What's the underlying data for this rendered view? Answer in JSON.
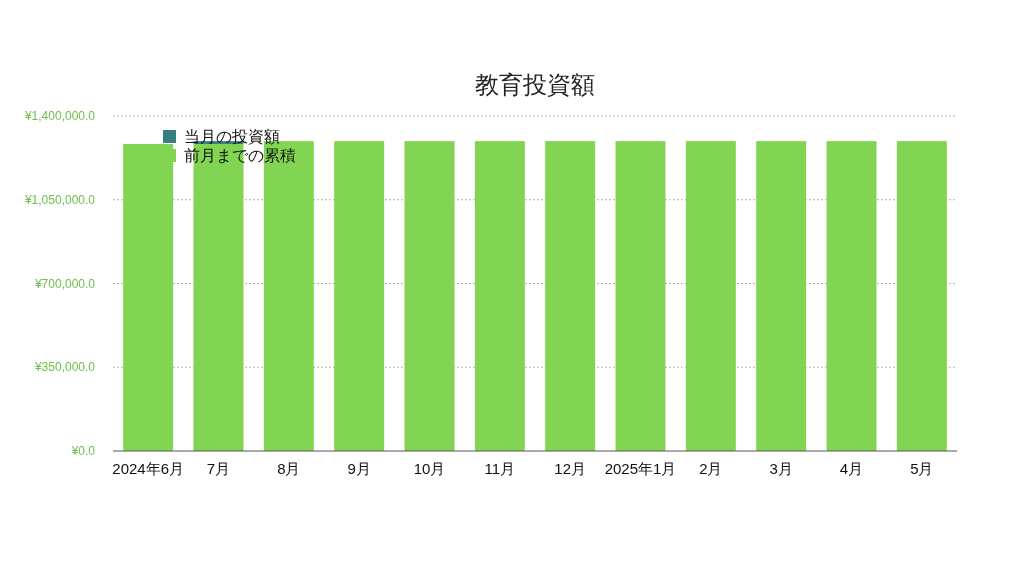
{
  "chart_data": {
    "type": "bar",
    "title": "教育投資額",
    "stacked": true,
    "categories": [
      "2024年6月",
      "7月",
      "8月",
      "9月",
      "10月",
      "11月",
      "12月",
      "2025年1月",
      "2月",
      "3月",
      "4月",
      "5月"
    ],
    "series": [
      {
        "name": "前月までの累積",
        "color": "#82d552",
        "values": [
          1283000,
          1283000,
          1295000,
          1295000,
          1295000,
          1295000,
          1295000,
          1295000,
          1295000,
          1295000,
          1295000,
          1295000
        ]
      },
      {
        "name": "当月の投資額",
        "color": "#3a7f7f",
        "values": [
          0,
          12000,
          0,
          0,
          0,
          0,
          0,
          0,
          0,
          0,
          0,
          0
        ]
      }
    ],
    "ylim": [
      0,
      1400000
    ],
    "yticks": [
      {
        "value": 0,
        "label": "¥0.0"
      },
      {
        "value": 350000,
        "label": "¥350,000.0"
      },
      {
        "value": 700000,
        "label": "¥700,000.0"
      },
      {
        "value": 1050000,
        "label": "¥1,050,000.0"
      },
      {
        "value": 1400000,
        "label": "¥1,400,000.0"
      }
    ],
    "grid": "y",
    "legend": "top left"
  }
}
